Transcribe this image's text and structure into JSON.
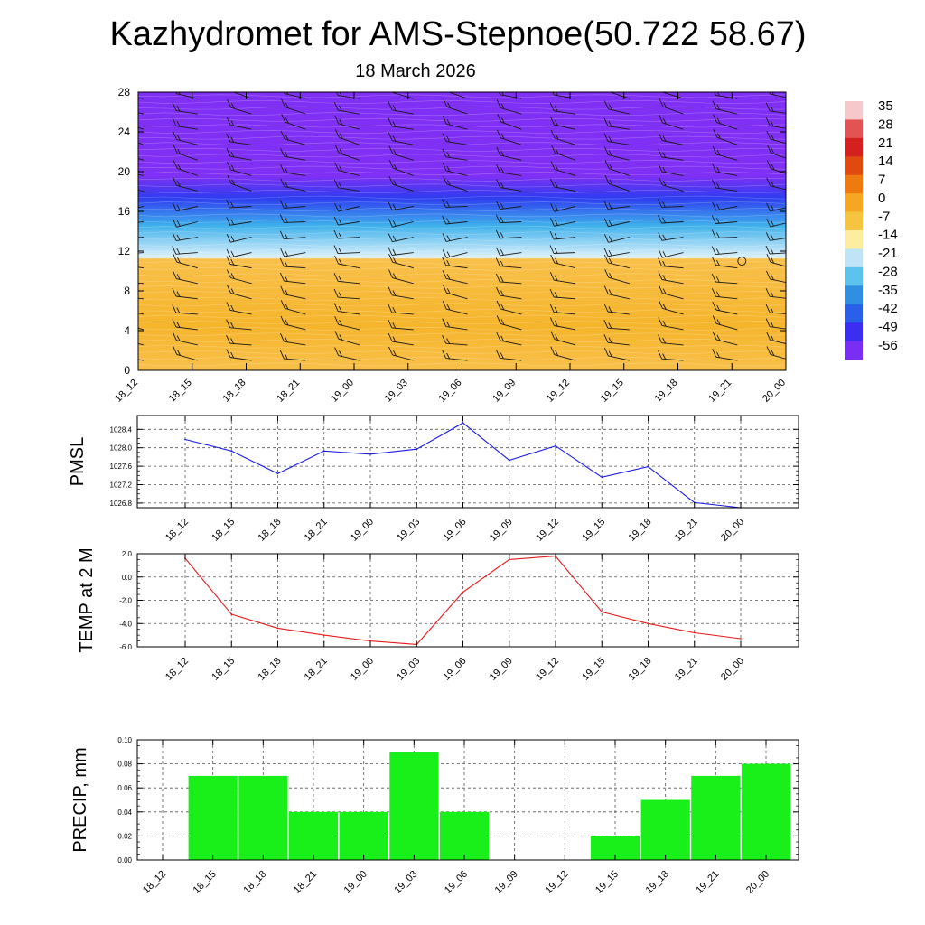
{
  "title": "Kazhydromet for AMS-Stepnoe(50.722 58.67)",
  "subtitle": "18 March 2026",
  "time_labels": [
    "18_12",
    "18_15",
    "18_18",
    "18_21",
    "19_00",
    "19_03",
    "19_06",
    "19_09",
    "19_12",
    "19_15",
    "19_18",
    "19_21",
    "20_00"
  ],
  "chart_data": [
    {
      "type": "heatmap",
      "name": "temperature-profile",
      "yaxis": {
        "min": 0,
        "max": 28,
        "ticks": [
          0,
          4,
          8,
          12,
          16,
          20,
          24,
          28
        ]
      },
      "colorbar": {
        "labels": [
          "35",
          "28",
          "21",
          "14",
          "7",
          "0",
          "-7",
          "-14",
          "-21",
          "-28",
          "-35",
          "-42",
          "-49",
          "-56"
        ],
        "colors": [
          "#f4c9c9",
          "#e25454",
          "#d52020",
          "#e04a10",
          "#ef7a10",
          "#f5a623",
          "#f6c540",
          "#fbeea0",
          "#bfe4f5",
          "#5ec3ec",
          "#2f8fe0",
          "#2a5fe8",
          "#3c2ef0",
          "#7a2ef3"
        ]
      },
      "band_colors": {
        "warm": "#f9c04a",
        "warm_dark": "#f5b52c",
        "transition_light": "#dff2fb",
        "transition_blue": "#3fb1ec",
        "cold_blue": "#2e3cf0",
        "cold_violet": "#8030f5"
      },
      "marker_time": "19_21",
      "marker_height": 11
    },
    {
      "type": "line",
      "name": "pmsl",
      "ylabel": "PMSL",
      "ylim": [
        1026.7,
        1028.7
      ],
      "yticks": [
        "1026.8",
        "1027.2",
        "1027.6",
        "1028.0",
        "1028.4"
      ],
      "ytick_values": [
        1026.8,
        1027.2,
        1027.6,
        1028.0,
        1028.4
      ],
      "values": [
        1028.18,
        1027.93,
        1027.44,
        1027.93,
        1027.86,
        1027.97,
        1028.54,
        1027.73,
        1028.04,
        1027.36,
        1027.59,
        1026.81,
        1026.7
      ],
      "color": "#1a1ae6"
    },
    {
      "type": "line",
      "name": "temp2m",
      "ylabel": "TEMP at 2 M",
      "ylim": [
        -6.0,
        2.0
      ],
      "yticks": [
        "-6.0",
        "-4.0",
        "-2.0",
        "0.0",
        "2.0"
      ],
      "ytick_values": [
        -6.0,
        -4.0,
        -2.0,
        0.0,
        2.0
      ],
      "values": [
        1.6,
        -3.2,
        -4.4,
        -5.0,
        -5.5,
        -5.8,
        -1.3,
        1.5,
        1.8,
        -3.0,
        -4.0,
        -4.8,
        -5.3
      ],
      "color": "#e61a1a"
    },
    {
      "type": "bar",
      "name": "precip",
      "ylabel": "PRECIP, mm",
      "ylim": [
        0.0,
        0.1
      ],
      "yticks": [
        "0.00",
        "0.02",
        "0.04",
        "0.06",
        "0.08",
        "0.10"
      ],
      "ytick_values": [
        0.0,
        0.02,
        0.04,
        0.06,
        0.08,
        0.1
      ],
      "values": [
        0,
        0.07,
        0.07,
        0.04,
        0.04,
        0.09,
        0.04,
        0,
        0,
        0.02,
        0.05,
        0.07,
        0.08
      ],
      "color": "#19f019"
    }
  ]
}
